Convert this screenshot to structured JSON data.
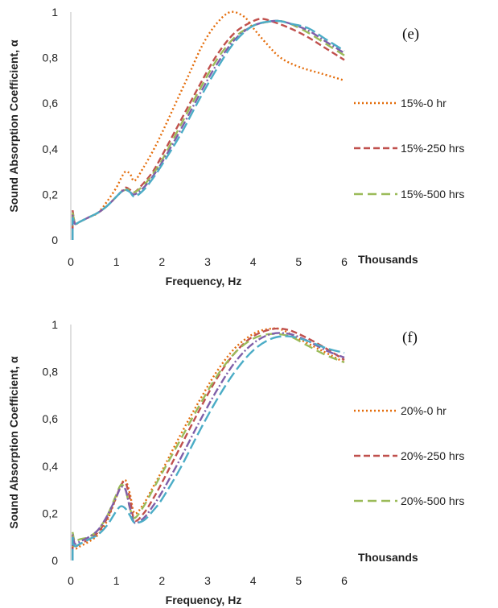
{
  "chart_data": [
    {
      "type": "line",
      "panel_label": "(e)",
      "xlabel": "Frequency, Hz",
      "ylabel": "Sound Absorption Coefficient, α",
      "x_units_label": "Thousands",
      "xlim": [
        0,
        6
      ],
      "ylim": [
        0,
        1
      ],
      "x_ticks": [
        "0",
        "1",
        "2",
        "3",
        "4",
        "5",
        "6"
      ],
      "y_ticks": [
        "0",
        "0,2",
        "0,4",
        "0,6",
        "0,8",
        "1"
      ],
      "legend_position": "right",
      "series": [
        {
          "name": "15%-0 hr",
          "color": "#E46C0A",
          "dash": "2 3",
          "in_legend": true,
          "x": [
            0.04,
            0.07,
            0.1,
            0.2,
            0.4,
            0.6,
            0.8,
            1.0,
            1.1,
            1.2,
            1.3,
            1.4,
            1.6,
            1.8,
            2.0,
            2.3,
            2.6,
            2.9,
            3.2,
            3.5,
            3.8,
            4.0,
            4.3,
            4.6,
            5.0,
            5.5,
            6.0
          ],
          "y": [
            0.12,
            0.09,
            0.07,
            0.08,
            0.1,
            0.12,
            0.17,
            0.23,
            0.27,
            0.3,
            0.29,
            0.26,
            0.32,
            0.39,
            0.47,
            0.6,
            0.73,
            0.86,
            0.95,
            1.0,
            0.98,
            0.93,
            0.86,
            0.8,
            0.76,
            0.73,
            0.7
          ]
        },
        {
          "name": "15%-250 hrs",
          "color": "#C0504D",
          "dash": "8 4",
          "in_legend": true,
          "x": [
            0.04,
            0.07,
            0.1,
            0.2,
            0.4,
            0.6,
            0.8,
            1.0,
            1.1,
            1.2,
            1.3,
            1.4,
            1.6,
            1.8,
            2.0,
            2.4,
            2.8,
            3.2,
            3.6,
            4.0,
            4.2,
            4.4,
            4.8,
            5.2,
            5.6,
            6.0
          ],
          "y": [
            0.13,
            0.09,
            0.07,
            0.08,
            0.1,
            0.12,
            0.15,
            0.19,
            0.21,
            0.23,
            0.22,
            0.21,
            0.25,
            0.3,
            0.37,
            0.52,
            0.67,
            0.81,
            0.91,
            0.96,
            0.97,
            0.96,
            0.93,
            0.89,
            0.84,
            0.79
          ]
        },
        {
          "name": "15%-500 hrs",
          "color": "#9BBB59",
          "dash": "11 6",
          "in_legend": true,
          "x": [
            0.04,
            0.07,
            0.1,
            0.2,
            0.4,
            0.6,
            0.8,
            1.0,
            1.1,
            1.2,
            1.3,
            1.4,
            1.6,
            1.8,
            2.0,
            2.4,
            2.8,
            3.2,
            3.6,
            4.0,
            4.4,
            4.6,
            4.8,
            5.2,
            5.6,
            6.0
          ],
          "y": [
            0.12,
            0.09,
            0.07,
            0.08,
            0.1,
            0.12,
            0.15,
            0.19,
            0.21,
            0.22,
            0.22,
            0.21,
            0.24,
            0.29,
            0.35,
            0.5,
            0.65,
            0.79,
            0.89,
            0.94,
            0.96,
            0.96,
            0.95,
            0.91,
            0.86,
            0.81
          ]
        },
        {
          "name": "",
          "color": "#7F5FA9",
          "dash": "10 3 2 3",
          "in_legend": false,
          "x": [
            0.04,
            0.07,
            0.1,
            0.2,
            0.4,
            0.6,
            0.8,
            1.0,
            1.1,
            1.2,
            1.3,
            1.4,
            1.6,
            1.8,
            2.0,
            2.4,
            2.8,
            3.2,
            3.6,
            4.0,
            4.4,
            4.6,
            4.8,
            5.2,
            5.6,
            6.0
          ],
          "y": [
            0.11,
            0.08,
            0.07,
            0.08,
            0.1,
            0.12,
            0.15,
            0.19,
            0.21,
            0.22,
            0.21,
            0.2,
            0.23,
            0.28,
            0.34,
            0.48,
            0.63,
            0.77,
            0.88,
            0.94,
            0.96,
            0.96,
            0.95,
            0.92,
            0.87,
            0.82
          ]
        },
        {
          "name": "",
          "color": "#4BACC6",
          "dash": "14 5",
          "in_legend": false,
          "x": [
            0.04,
            0.07,
            0.1,
            0.2,
            0.4,
            0.6,
            0.8,
            1.0,
            1.1,
            1.2,
            1.3,
            1.4,
            1.6,
            1.8,
            2.0,
            2.4,
            2.8,
            3.2,
            3.6,
            4.0,
            4.4,
            4.6,
            4.8,
            5.2,
            5.6,
            6.0
          ],
          "y": [
            0.1,
            0.08,
            0.07,
            0.08,
            0.1,
            0.12,
            0.15,
            0.19,
            0.21,
            0.22,
            0.21,
            0.19,
            0.22,
            0.27,
            0.33,
            0.46,
            0.61,
            0.75,
            0.87,
            0.94,
            0.96,
            0.96,
            0.95,
            0.93,
            0.88,
            0.83
          ]
        }
      ]
    },
    {
      "type": "line",
      "panel_label": "(f)",
      "xlabel": "Frequency, Hz",
      "ylabel": "Sound Absorption Coefficient, α",
      "x_units_label": "Thousands",
      "xlim": [
        0,
        6
      ],
      "ylim": [
        0,
        1
      ],
      "x_ticks": [
        "0",
        "1",
        "2",
        "3",
        "4",
        "5",
        "6"
      ],
      "y_ticks": [
        "0",
        "0,2",
        "0,4",
        "0,6",
        "0,8",
        "1"
      ],
      "legend_position": "right",
      "series": [
        {
          "name": "20%-0 hr",
          "color": "#E46C0A",
          "dash": "2 3",
          "in_legend": true,
          "x": [
            0.04,
            0.07,
            0.1,
            0.2,
            0.4,
            0.6,
            0.8,
            1.0,
            1.1,
            1.2,
            1.3,
            1.4,
            1.6,
            1.8,
            2.0,
            2.4,
            2.8,
            3.2,
            3.6,
            4.0,
            4.3,
            4.6,
            5.0,
            5.5,
            6.0
          ],
          "y": [
            0.1,
            0.07,
            0.05,
            0.06,
            0.08,
            0.11,
            0.17,
            0.27,
            0.32,
            0.34,
            0.28,
            0.2,
            0.24,
            0.31,
            0.38,
            0.53,
            0.67,
            0.8,
            0.9,
            0.96,
            0.98,
            0.98,
            0.94,
            0.89,
            0.84
          ]
        },
        {
          "name": "20%-250 hrs",
          "color": "#C0504D",
          "dash": "8 4",
          "in_legend": true,
          "x": [
            0.04,
            0.07,
            0.1,
            0.2,
            0.4,
            0.6,
            0.8,
            1.0,
            1.1,
            1.2,
            1.3,
            1.4,
            1.6,
            1.8,
            2.0,
            2.4,
            2.8,
            3.2,
            3.6,
            4.0,
            4.4,
            4.7,
            5.0,
            5.5,
            6.0
          ],
          "y": [
            0.11,
            0.08,
            0.06,
            0.07,
            0.09,
            0.12,
            0.18,
            0.27,
            0.32,
            0.33,
            0.26,
            0.17,
            0.2,
            0.26,
            0.33,
            0.48,
            0.63,
            0.77,
            0.88,
            0.95,
            0.98,
            0.98,
            0.96,
            0.91,
            0.85
          ]
        },
        {
          "name": "20%-500 hrs",
          "color": "#9BBB59",
          "dash": "11 6",
          "in_legend": true,
          "x": [
            0.04,
            0.07,
            0.1,
            0.2,
            0.4,
            0.6,
            0.8,
            1.0,
            1.1,
            1.2,
            1.3,
            1.4,
            1.6,
            1.8,
            2.0,
            2.4,
            2.8,
            3.2,
            3.6,
            4.0,
            4.4,
            4.8,
            5.2,
            5.6,
            6.0
          ],
          "y": [
            0.12,
            0.09,
            0.08,
            0.09,
            0.1,
            0.13,
            0.19,
            0.28,
            0.32,
            0.3,
            0.22,
            0.18,
            0.23,
            0.3,
            0.37,
            0.51,
            0.65,
            0.78,
            0.88,
            0.94,
            0.96,
            0.95,
            0.91,
            0.87,
            0.84
          ]
        },
        {
          "name": "",
          "color": "#7F5FA9",
          "dash": "10 3 2 3",
          "in_legend": false,
          "x": [
            0.04,
            0.07,
            0.1,
            0.2,
            0.4,
            0.6,
            0.8,
            1.0,
            1.1,
            1.2,
            1.3,
            1.4,
            1.6,
            1.8,
            2.0,
            2.4,
            2.8,
            3.2,
            3.6,
            4.0,
            4.4,
            4.8,
            5.2,
            5.6,
            6.0
          ],
          "y": [
            0.11,
            0.08,
            0.07,
            0.08,
            0.1,
            0.13,
            0.19,
            0.27,
            0.31,
            0.3,
            0.22,
            0.16,
            0.18,
            0.23,
            0.29,
            0.43,
            0.58,
            0.72,
            0.84,
            0.92,
            0.96,
            0.96,
            0.93,
            0.89,
            0.86
          ]
        },
        {
          "name": "",
          "color": "#4BACC6",
          "dash": "14 5",
          "in_legend": false,
          "x": [
            0.04,
            0.07,
            0.1,
            0.2,
            0.4,
            0.6,
            0.8,
            1.0,
            1.1,
            1.2,
            1.3,
            1.4,
            1.6,
            1.8,
            2.0,
            2.4,
            2.8,
            3.2,
            3.6,
            4.0,
            4.4,
            4.8,
            5.2,
            5.6,
            6.0
          ],
          "y": [
            0.1,
            0.07,
            0.06,
            0.07,
            0.09,
            0.11,
            0.15,
            0.21,
            0.23,
            0.22,
            0.19,
            0.16,
            0.17,
            0.21,
            0.26,
            0.39,
            0.54,
            0.68,
            0.8,
            0.89,
            0.94,
            0.95,
            0.93,
            0.9,
            0.88
          ]
        }
      ]
    }
  ]
}
